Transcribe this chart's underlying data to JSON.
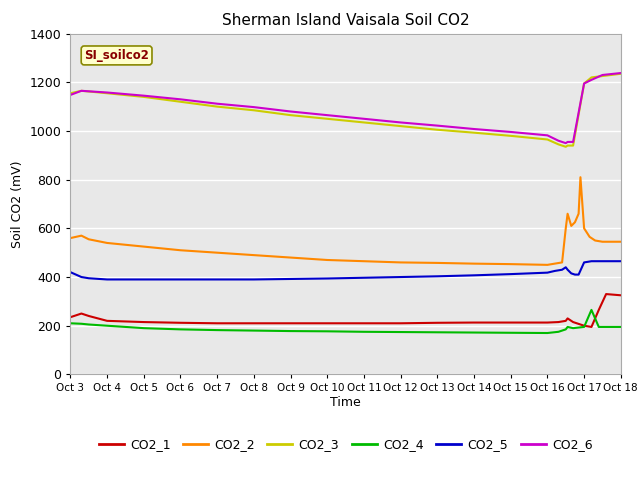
{
  "title": "Sherman Island Vaisala Soil CO2",
  "ylabel": "Soil CO2 (mV)",
  "xlabel": "Time",
  "ylim": [
    0,
    1400
  ],
  "yticks": [
    0,
    200,
    400,
    600,
    800,
    1000,
    1200,
    1400
  ],
  "xtick_labels": [
    "Oct 3",
    "Oct 4",
    "Oct 5",
    "Oct 6",
    "Oct 7",
    "Oct 8",
    "Oct 9",
    "Oct 10",
    "Oct 11",
    "Oct 12",
    "Oct 13",
    "Oct 14",
    "Oct 15",
    "Oct 16",
    "Oct 17",
    "Oct 18"
  ],
  "plot_bg": "#e8e8e8",
  "legend_label": "SI_soilco2",
  "series": {
    "CO2_1": {
      "color": "#cc0000",
      "x": [
        0,
        0.3,
        0.5,
        1.0,
        2.0,
        3.0,
        4.0,
        5.0,
        6.0,
        7.0,
        8.0,
        9.0,
        10.0,
        11.0,
        12.0,
        13.0,
        13.3,
        13.5,
        13.55,
        13.7,
        14.0,
        14.2,
        14.4,
        14.6,
        15.0
      ],
      "y": [
        235,
        250,
        240,
        220,
        215,
        212,
        210,
        210,
        210,
        210,
        210,
        210,
        212,
        213,
        213,
        213,
        215,
        220,
        230,
        215,
        200,
        195,
        265,
        330,
        325
      ]
    },
    "CO2_2": {
      "color": "#ff8800",
      "x": [
        0,
        0.3,
        0.5,
        1.0,
        2.0,
        3.0,
        4.0,
        5.0,
        6.0,
        7.0,
        8.0,
        9.0,
        10.0,
        11.0,
        12.0,
        13.0,
        13.2,
        13.4,
        13.5,
        13.55,
        13.65,
        13.75,
        13.85,
        13.9,
        14.0,
        14.15,
        14.3,
        14.5,
        15.0
      ],
      "y": [
        560,
        570,
        555,
        540,
        525,
        510,
        500,
        490,
        480,
        470,
        465,
        460,
        458,
        455,
        453,
        450,
        455,
        460,
        600,
        660,
        610,
        625,
        660,
        810,
        600,
        565,
        550,
        545,
        545
      ]
    },
    "CO2_3": {
      "color": "#cccc00",
      "x": [
        0,
        0.3,
        1.0,
        2.0,
        3.0,
        4.0,
        5.0,
        6.0,
        7.0,
        8.0,
        9.0,
        10.0,
        11.0,
        12.0,
        13.0,
        13.3,
        13.5,
        13.55,
        13.7,
        14.0,
        14.2,
        15.0
      ],
      "y": [
        1155,
        1165,
        1155,
        1140,
        1120,
        1100,
        1085,
        1065,
        1050,
        1035,
        1020,
        1005,
        993,
        980,
        965,
        945,
        935,
        940,
        940,
        1195,
        1220,
        1235
      ]
    },
    "CO2_4": {
      "color": "#00bb00",
      "x": [
        0,
        0.3,
        0.5,
        1.0,
        2.0,
        3.0,
        4.0,
        5.0,
        6.0,
        7.0,
        8.0,
        9.0,
        10.0,
        11.0,
        12.0,
        13.0,
        13.3,
        13.5,
        13.55,
        13.7,
        14.0,
        14.2,
        14.4,
        14.6,
        15.0
      ],
      "y": [
        210,
        208,
        205,
        200,
        190,
        185,
        182,
        180,
        178,
        177,
        175,
        174,
        173,
        172,
        171,
        170,
        175,
        185,
        195,
        190,
        195,
        265,
        195,
        195,
        195
      ]
    },
    "CO2_5": {
      "color": "#0000cc",
      "x": [
        0,
        0.3,
        0.5,
        1.0,
        2.0,
        3.0,
        4.0,
        5.0,
        6.0,
        7.0,
        8.0,
        9.0,
        10.0,
        11.0,
        12.0,
        13.0,
        13.2,
        13.4,
        13.5,
        13.55,
        13.65,
        13.75,
        13.85,
        14.0,
        14.2,
        15.0
      ],
      "y": [
        420,
        400,
        395,
        390,
        390,
        390,
        390,
        390,
        392,
        394,
        397,
        400,
        403,
        407,
        412,
        418,
        425,
        430,
        440,
        430,
        415,
        410,
        410,
        460,
        465,
        465
      ]
    },
    "CO2_6": {
      "color": "#cc00cc",
      "x": [
        0,
        0.3,
        1.0,
        2.0,
        3.0,
        4.0,
        5.0,
        6.0,
        7.0,
        8.0,
        9.0,
        10.0,
        11.0,
        12.0,
        13.0,
        13.3,
        13.5,
        13.55,
        13.7,
        14.0,
        14.2,
        14.5,
        15.0
      ],
      "y": [
        1148,
        1165,
        1158,
        1145,
        1130,
        1112,
        1098,
        1080,
        1065,
        1050,
        1035,
        1022,
        1008,
        996,
        982,
        960,
        950,
        955,
        955,
        1195,
        1210,
        1230,
        1238
      ]
    }
  },
  "legend_colors": [
    "#cc0000",
    "#ff8800",
    "#cccc00",
    "#00bb00",
    "#0000cc",
    "#cc00cc"
  ],
  "legend_labels": [
    "CO2_1",
    "CO2_2",
    "CO2_3",
    "CO2_4",
    "CO2_5",
    "CO2_6"
  ]
}
